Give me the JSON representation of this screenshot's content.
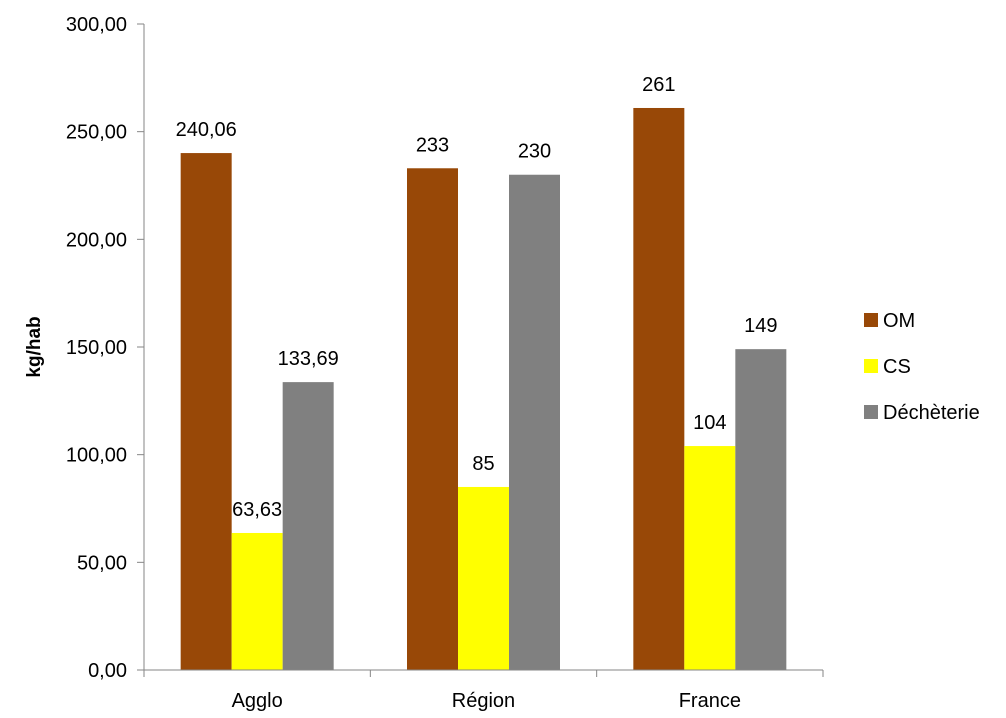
{
  "chart_data": {
    "type": "bar",
    "title": "",
    "xlabel": "",
    "ylabel": "kg/hab",
    "categories": [
      "Agglo",
      "Région",
      "France"
    ],
    "series": [
      {
        "name": "OM",
        "color": "#984807",
        "values": [
          240.06,
          233,
          261
        ],
        "labels": [
          "240,06",
          "233",
          "261"
        ]
      },
      {
        "name": "CS",
        "color": "#FFFF00",
        "values": [
          63.63,
          85,
          104
        ],
        "labels": [
          "63,63",
          "85",
          "104"
        ]
      },
      {
        "name": "Déchèterie",
        "color": "#808080",
        "values": [
          133.69,
          230,
          149
        ],
        "labels": [
          "133,69",
          "230",
          "149"
        ]
      }
    ],
    "ylim": [
      0,
      300
    ],
    "yticks": [
      0,
      50,
      100,
      150,
      200,
      250,
      300
    ],
    "ytick_labels": [
      "0,00",
      "50,00",
      "100,00",
      "150,00",
      "200,00",
      "250,00",
      "300,00"
    ],
    "grid": false,
    "legend_position": "right"
  }
}
